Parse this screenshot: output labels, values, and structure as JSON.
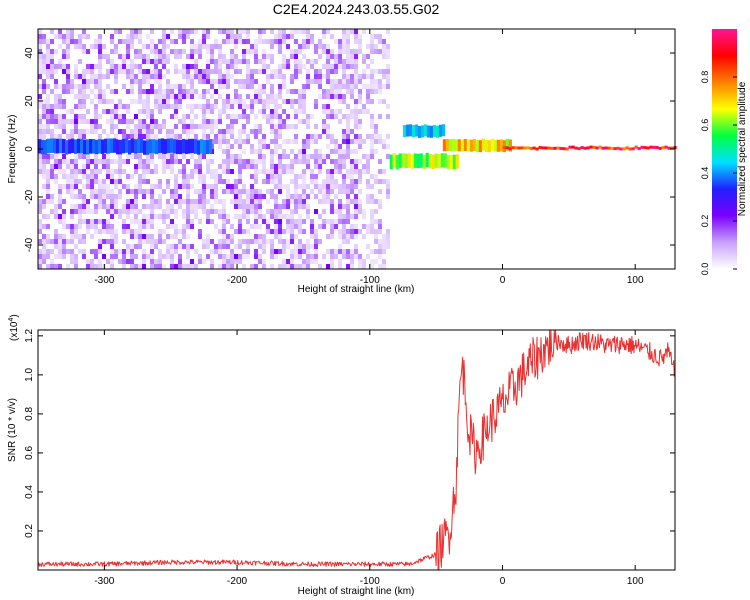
{
  "title": "C2E4.2024.243.03.55.G02",
  "chart_data": [
    {
      "type": "heatmap",
      "xlabel": "Height of straight line (km)",
      "ylabel": "Frequency (Hz)",
      "xlim": [
        -350,
        130
      ],
      "ylim": [
        -50,
        50
      ],
      "xticks": [
        -300,
        -200,
        -100,
        0,
        100
      ],
      "yticks": [
        -40,
        -20,
        0,
        20,
        40
      ],
      "grid": false,
      "colorbar": {
        "label": "Normalized spectral amplitude",
        "range": [
          0,
          1
        ],
        "ticks": [
          "0.0",
          "0.2",
          "0.4",
          "0.6",
          "0.8"
        ],
        "colormap": [
          "#ffffff",
          "#c8a0ff",
          "#7a00ff",
          "#2020ff",
          "#00e0ff",
          "#00ff40",
          "#ffff00",
          "#ff8000",
          "#ff0000",
          "#ff1493"
        ]
      },
      "noise_region": {
        "x": [
          -350,
          -85
        ],
        "y": [
          -50,
          50
        ],
        "amplitude": [
          0.0,
          0.25
        ]
      },
      "features": [
        {
          "x": [
            -350,
            -220
          ],
          "y": [
            -2,
            4
          ],
          "amplitude": 0.4
        },
        {
          "x": [
            -85,
            -35
          ],
          "y": [
            -8,
            -2
          ],
          "amplitude": 0.7
        },
        {
          "x": [
            -75,
            -45
          ],
          "y": [
            5,
            10
          ],
          "amplitude": 0.5
        },
        {
          "x": [
            -45,
            5
          ],
          "y": [
            -1,
            4
          ],
          "amplitude": 0.8
        },
        {
          "x": [
            0,
            130
          ],
          "y": [
            0,
            1
          ],
          "amplitude": 1.0
        }
      ]
    },
    {
      "type": "line",
      "xlabel": "Height of straight line (km)",
      "ylabel": "SNR (10 * v/v)",
      "multiplier": "(x10",
      "multiplier_exp": "4",
      "multiplier_close": ")",
      "xlim": [
        -350,
        130
      ],
      "ylim": [
        0,
        1.23
      ],
      "xticks": [
        -300,
        -200,
        -100,
        0,
        100
      ],
      "yticks": [
        "0.2",
        "0.4",
        "0.6",
        "0.8",
        "1.0",
        "1.2"
      ],
      "grid": false,
      "color": "#e83030",
      "series": [
        {
          "x": [
            -350,
            -300,
            -250,
            -200,
            -150,
            -100,
            -70,
            -50,
            -40,
            -35,
            -32,
            -30,
            -25,
            -20,
            -10,
            -5,
            0,
            10,
            20,
            30,
            40,
            50,
            60,
            70,
            80,
            90,
            100,
            110,
            120,
            125,
            130
          ],
          "y": [
            0.03,
            0.03,
            0.04,
            0.04,
            0.03,
            0.03,
            0.03,
            0.08,
            0.2,
            0.45,
            0.95,
            1.05,
            0.7,
            0.6,
            0.75,
            0.8,
            0.85,
            0.95,
            1.05,
            1.12,
            1.18,
            1.15,
            1.18,
            1.17,
            1.15,
            1.16,
            1.15,
            1.12,
            1.08,
            1.12,
            1.0
          ]
        }
      ]
    }
  ]
}
